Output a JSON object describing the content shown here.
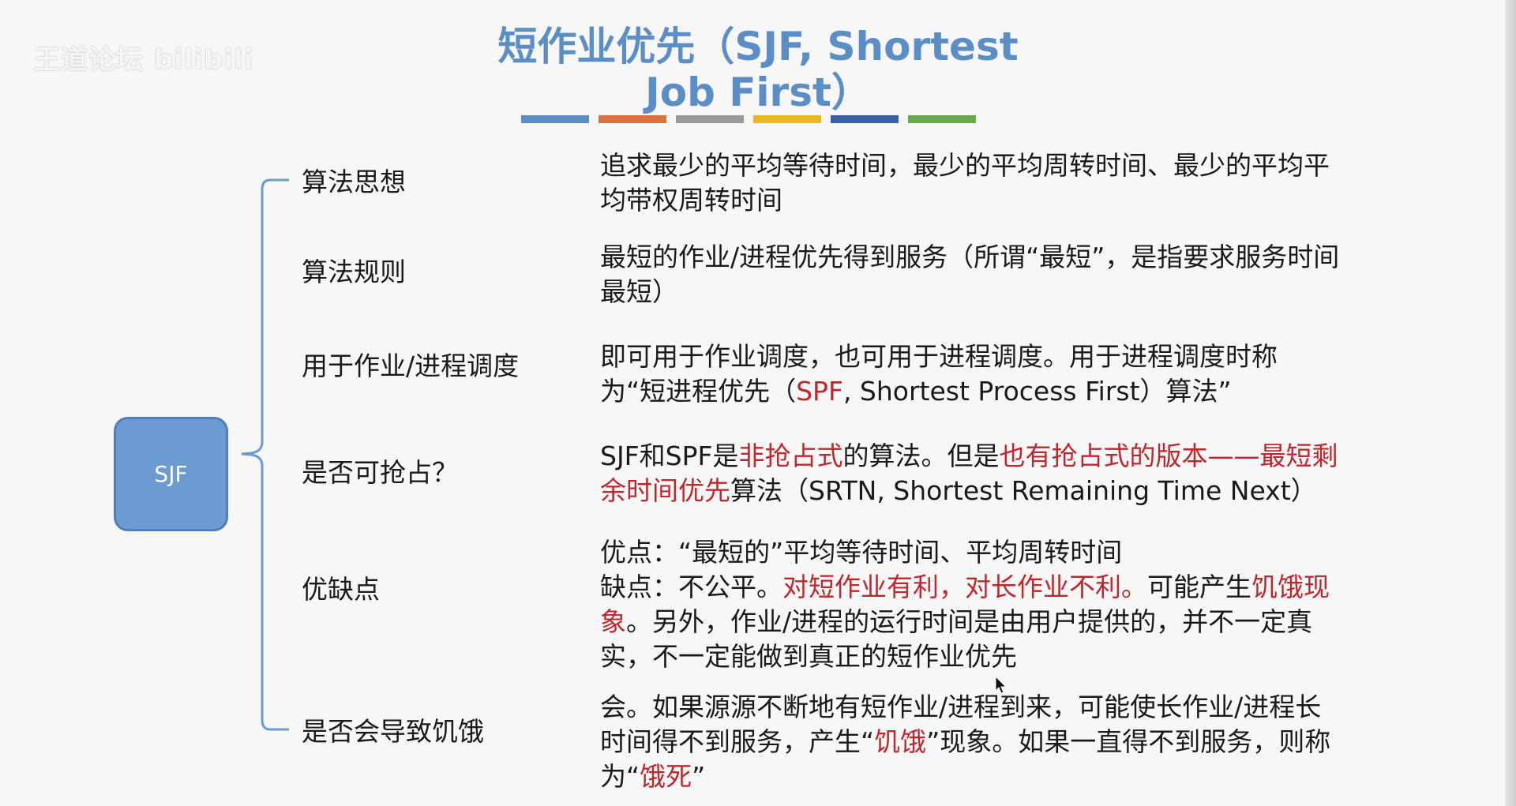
{
  "watermark": "王道论坛 bilibili",
  "title": {
    "line1": "短作业优先（SJF, Shortest",
    "line2": "Job First）"
  },
  "colors": {
    "title": "#5b8ec6",
    "bars": [
      "#5b8ec6",
      "#d9733b",
      "#9a9a9a",
      "#f0b429",
      "#3b5fa8",
      "#6aa84f"
    ],
    "root_fill": "#6b9bd1",
    "highlight": "#c0272d"
  },
  "root": "SJF",
  "rows": [
    {
      "label": "算法思想",
      "desc": [
        [
          {
            "t": "追求最少的平均等待时间，最少的平均周转时间、最少的平均平均带权周转时间"
          }
        ]
      ]
    },
    {
      "label": "算法规则",
      "desc": [
        [
          {
            "t": "最短的作业/进程优先得到服务（所谓“最短”，是指要求服务时间最短）"
          }
        ]
      ]
    },
    {
      "label": "用于作业/进程调度",
      "desc": [
        [
          {
            "t": "即可用于作业调度，也可用于进程调度。用于进程调度时称为“短进程优先（"
          },
          {
            "t": "SPF",
            "red": true
          },
          {
            "t": ", Shortest Process First）算法”"
          }
        ]
      ]
    },
    {
      "label": "是否可抢占？",
      "desc": [
        [
          {
            "t": "SJF和SPF是"
          },
          {
            "t": "非抢占式",
            "red": true
          },
          {
            "t": "的算法。但是"
          },
          {
            "t": "也有抢占式的版本——最短剩余时间优先",
            "red": true
          },
          {
            "t": "算法（SRTN, Shortest Remaining Time Next）"
          }
        ]
      ]
    },
    {
      "label": "优缺点",
      "desc": [
        [
          {
            "t": "优点：“最短的”平均等待时间、平均周转时间"
          }
        ],
        [
          {
            "t": "缺点：不公平。"
          },
          {
            "t": "对短作业有利，对长作业不利。",
            "red": true
          },
          {
            "t": "可能产生"
          },
          {
            "t": "饥饿现象",
            "red": true
          },
          {
            "t": "。另外，作业/进程的运行时间是由用户提供的，并不一定真实，不一定能做到真正的短作业优先"
          }
        ]
      ]
    },
    {
      "label": "是否会导致饥饿",
      "desc": [
        [
          {
            "t": "会。如果源源不断地有短作业/进程到来，可能使长作业/进程长时间得不到服务，产生“"
          },
          {
            "t": "饥饿",
            "red": true
          },
          {
            "t": "”现象。如果一直得不到服务，则称为“"
          },
          {
            "t": "饿死",
            "red": true
          },
          {
            "t": "”"
          }
        ]
      ]
    }
  ]
}
